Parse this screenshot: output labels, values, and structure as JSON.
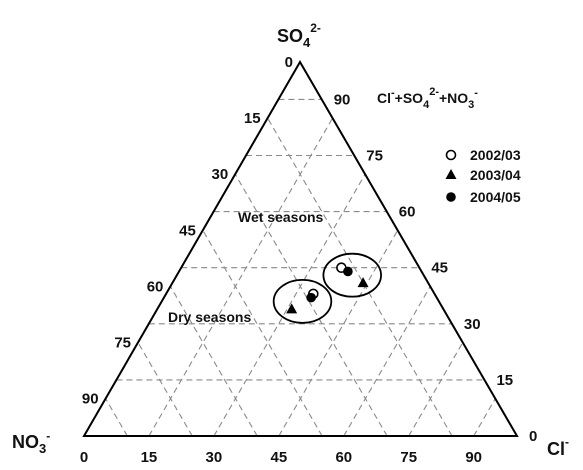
{
  "chart_data": {
    "type": "scatter",
    "subtype": "ternary",
    "title": "Cl⁻+SO₄²⁻+NO₃⁻",
    "title_parts": {
      "base1": "Cl",
      "sup1": "-",
      "mid": "+SO",
      "sub": "4",
      "sup2": "2-",
      "mid2": "+NO",
      "sub2": "3",
      "sup3": "-"
    },
    "apex_top": {
      "base": "SO",
      "sub": "4",
      "sup": "2-"
    },
    "apex_left": {
      "base": "NO",
      "sub": "3",
      "sup": "-"
    },
    "apex_right": {
      "base": "Cl",
      "sup": "-"
    },
    "axis_range": [
      0,
      100
    ],
    "grid_step": 15,
    "ticks": {
      "left_edge": [
        "0",
        "15",
        "30",
        "45",
        "60",
        "75",
        "90"
      ],
      "right_edge": [
        "90",
        "75",
        "60",
        "45",
        "30",
        "15",
        "0"
      ],
      "bottom_edge": [
        "0",
        "15",
        "30",
        "45",
        "60",
        "75",
        "90"
      ]
    },
    "tick_values": [
      0,
      15,
      30,
      45,
      60,
      75,
      90
    ],
    "grid": true,
    "legend_position": "top-right",
    "series": [
      {
        "name": "2002/03",
        "marker": "open-circle",
        "points": [
          {
            "cl": 37,
            "so4": 45,
            "no3": 18
          },
          {
            "cl": 34,
            "so4": 38,
            "no3": 28
          }
        ]
      },
      {
        "name": "2003/04",
        "marker": "filled-triangle",
        "points": [
          {
            "cl": 44,
            "so4": 41,
            "no3": 15
          },
          {
            "cl": 31,
            "so4": 34,
            "no3": 35
          }
        ]
      },
      {
        "name": "2004/05",
        "marker": "filled-circle",
        "points": [
          {
            "cl": 39,
            "so4": 44,
            "no3": 17
          },
          {
            "cl": 34,
            "so4": 37,
            "no3": 29
          }
        ]
      }
    ],
    "annotations": [
      {
        "text": "Wet seasons"
      },
      {
        "text": "Dry seasons"
      }
    ],
    "colors": {
      "axis": "#000000",
      "grid": "#8a8a8a",
      "marker": "#000000"
    }
  }
}
